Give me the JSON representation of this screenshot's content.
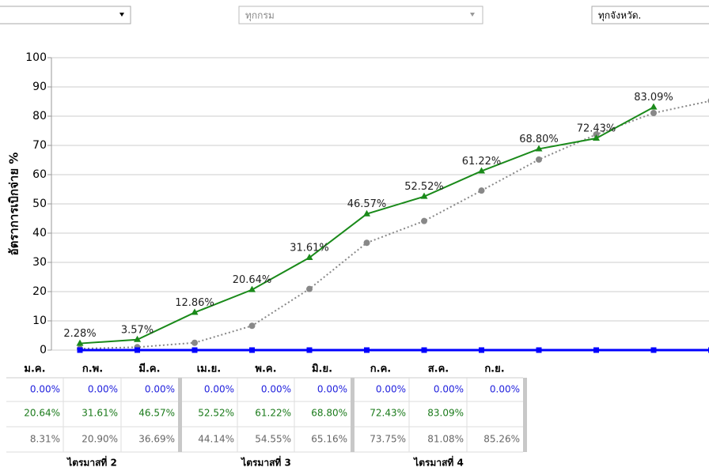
{
  "filters": [
    "ทุกกรม",
    "ทุกจังหวัด."
  ],
  "chart_data": {
    "type": "line",
    "y_label": "อัตราการเบิกจ่าย %",
    "categories": [
      null,
      null,
      null,
      null,
      null,
      null,
      null,
      null,
      null,
      null,
      null,
      null
    ],
    "series": [
      {
        "color": "#888888",
        "style": "dotted",
        "marker": "circle",
        "values": [
          0.5,
          1.0,
          2.5,
          8.31,
          20.9,
          36.69,
          44.14,
          54.55,
          65.16,
          73.75,
          81.08,
          85.26
        ]
      },
      {
        "color": "#0000ff",
        "style": "solid",
        "marker": "square",
        "values": [
          0,
          0,
          0,
          0,
          0,
          0,
          0,
          0,
          0,
          0,
          0,
          0
        ]
      },
      {
        "color": "#1a8a1a",
        "style": "solid",
        "marker": "triangle",
        "values": [
          2.28,
          3.57,
          12.86,
          20.64,
          31.61,
          46.57,
          52.52,
          61.22,
          68.8,
          72.43,
          83.09,
          null
        ],
        "value_labels": [
          "2.28%",
          "3.57%",
          "12.86%",
          "20.64%",
          "31.61%",
          "46.57%",
          "52.52%",
          "61.22%",
          "68.80%",
          "72.43%",
          "83.09%",
          null
        ]
      }
    ],
    "ylim": [
      0,
      100
    ],
    "yticks": [
      0,
      10,
      20,
      30,
      40,
      50,
      60,
      70,
      80,
      90,
      100
    ],
    "grid": true
  },
  "table": {
    "headers": [
      "ม.ค.",
      "ก.พ.",
      "มี.ค.",
      "เม.ย.",
      "พ.ค.",
      "มิ.ย.",
      "ก.ค.",
      "ส.ค.",
      "ก.ย."
    ],
    "row_colors": [
      "#2222dd",
      "#1a7a1a",
      "#666666"
    ],
    "rows": [
      [
        "0.00%",
        "0.00%",
        "0.00%",
        "0.00%",
        "0.00%",
        "0.00%",
        "0.00%",
        "0.00%",
        "0.00%"
      ],
      [
        "20.64%",
        "31.61%",
        "46.57%",
        "52.52%",
        "61.22%",
        "68.80%",
        "72.43%",
        "83.09%",
        null
      ],
      [
        "8.31%",
        "20.90%",
        "36.69%",
        "44.14%",
        "54.55%",
        "65.16%",
        "73.75%",
        "81.08%",
        "85.26%"
      ]
    ],
    "footers": [
      "ไตรมาสที่ 2",
      "ไตรมาสที่ 3",
      "ไตรมาสที่ 4"
    ]
  }
}
